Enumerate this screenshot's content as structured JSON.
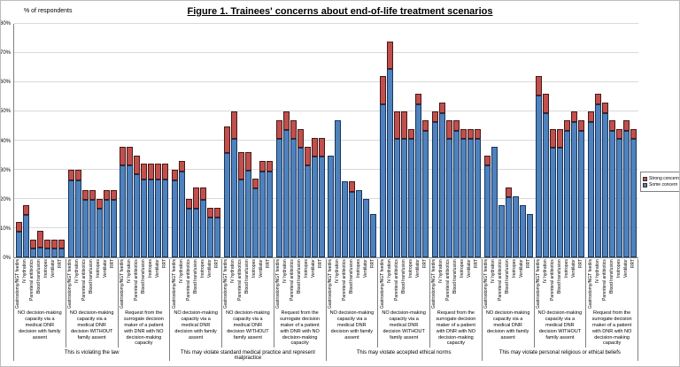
{
  "figure": {
    "title": "Figure 1. Trainees' concerns about end-of-life treatment scenarios",
    "y_axis_label": "% of respondents"
  },
  "legend": [
    {
      "label": "Strong concern",
      "color": "#C0504D"
    },
    {
      "label": "Some concern",
      "color": "#4F81BD"
    }
  ],
  "chart_data": {
    "type": "bar",
    "stacked": true,
    "title": "Figure 1. Trainees' concerns about end-of-life treatment scenarios",
    "ylabel": "% of respondents",
    "ylim": [
      0,
      80
    ],
    "ytick_step": 10,
    "ytick_labels": [
      "0%",
      "10%",
      "20%",
      "30%",
      "40%",
      "50%",
      "60%",
      "70%",
      "80%"
    ],
    "grid": true,
    "legend_position": "right",
    "series_names": [
      "Some concern",
      "Strong concern"
    ],
    "colors": {
      "some": "#4F81BD",
      "strong": "#C0504D"
    },
    "treatments": [
      "Gastrostomy/NGT feeding",
      "IV hydration",
      "Parenteral antibiotics",
      "Blood transfusion",
      "Inotropes",
      "Ventilator",
      "RRT"
    ],
    "sections": [
      {
        "label": "This is violating the law",
        "scenarios": [
          {
            "label": "NO decision-making capacity via a medical DNR decision with family assent",
            "some": [
              9,
              15,
              3,
              3,
              3,
              3,
              3
            ],
            "strong": [
              3,
              3,
              3,
              6,
              3,
              3,
              3
            ]
          },
          {
            "label": "NO decision-making capacity via a medical DNR decision WITHOUT family assent",
            "some": [
              27,
              27,
              20,
              20,
              17,
              20,
              20
            ],
            "strong": [
              3,
              3,
              3,
              3,
              3,
              3,
              3
            ]
          },
          {
            "label": "Request from the surrogate decision maker of a patient with DNR with NO decision-making capacity",
            "some": [
              32,
              32,
              29,
              27,
              27,
              27,
              27
            ],
            "strong": [
              6,
              6,
              6,
              5,
              5,
              5,
              5
            ]
          }
        ]
      },
      {
        "label": "This may violate standard medical practice and represent malpractice",
        "scenarios": [
          {
            "label": "NO decision-making capacity via a medical DNR decision with family assent",
            "some": [
              27,
              30,
              17,
              17,
              20,
              14,
              14
            ],
            "strong": [
              3,
              3,
              3,
              7,
              4,
              3,
              3
            ]
          },
          {
            "label": "NO decision-making capacity via a medical DNR decision WITHOUT family assent",
            "some": [
              36,
              41,
              27,
              30,
              24,
              30,
              30
            ],
            "strong": [
              9,
              9,
              9,
              6,
              3,
              3,
              3
            ]
          },
          {
            "label": "Request from the surrogate decision maker of a patient with DNR with NO decision-making capacity",
            "some": [
              41,
              44,
              41,
              38,
              32,
              35,
              35
            ],
            "strong": [
              6,
              6,
              6,
              6,
              6,
              6,
              6
            ]
          }
        ]
      },
      {
        "label": "This may violate accepted ethical norms",
        "scenarios": [
          {
            "label": "NO decision-making capacity via a medical DNR decision with family assent",
            "some": [
              35,
              47,
              26,
              23,
              23,
              20,
              15
            ],
            "strong": [
              0,
              0,
              0,
              3,
              0,
              0,
              0
            ]
          },
          {
            "label": "NO decision-making capacity via a medical DNR decision WITHOUT family assent",
            "some": [
              53,
              65,
              41,
              41,
              41,
              53,
              44
            ],
            "strong": [
              9,
              9,
              9,
              9,
              3,
              3,
              3
            ]
          },
          {
            "label": "Request from the surrogate decision maker of a patient with DNR with NO decision-making capacity",
            "some": [
              47,
              50,
              41,
              44,
              41,
              41,
              41
            ],
            "strong": [
              3,
              3,
              6,
              3,
              3,
              3,
              3
            ]
          }
        ]
      },
      {
        "label": "This may violate personal religious or ethical beliefs",
        "scenarios": [
          {
            "label": "NO decision-making capacity via a medical DNR decision with family assent",
            "some": [
              32,
              38,
              18,
              21,
              21,
              18,
              15
            ],
            "strong": [
              3,
              0,
              0,
              3,
              0,
              0,
              0
            ]
          },
          {
            "label": "NO decision-making capacity via a medical DNR decision WITHOUT family assent",
            "some": [
              56,
              50,
              38,
              38,
              44,
              47,
              44
            ],
            "strong": [
              6,
              6,
              6,
              6,
              3,
              3,
              3
            ]
          },
          {
            "label": "Request from the surrogate decision maker of a patient with DNR with NO decision-making capacity",
            "some": [
              47,
              53,
              50,
              44,
              41,
              44,
              41
            ],
            "strong": [
              3,
              3,
              3,
              3,
              3,
              3,
              3
            ]
          }
        ]
      }
    ]
  }
}
